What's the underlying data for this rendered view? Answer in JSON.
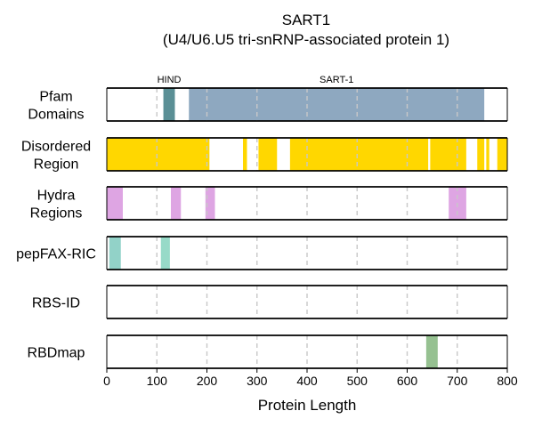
{
  "chart_data": {
    "type": "bar",
    "title_line1": "SART1",
    "title_line2": "(U4/U6.U5 tri-snRNP-associated protein 1)",
    "xlabel": "Protein Length",
    "xlim": [
      0,
      800
    ],
    "xticks": [
      0,
      100,
      200,
      300,
      400,
      500,
      600,
      700,
      800
    ],
    "grid_x": [
      100,
      200,
      300,
      400,
      500,
      600,
      700
    ],
    "tracks": [
      {
        "name": "Pfam\nDomains",
        "segments": [
          {
            "start": 113,
            "end": 136,
            "color": "#5a8f95",
            "label": "HIND"
          },
          {
            "start": 164,
            "end": 754,
            "color": "#8ea8c0",
            "label": "SART-1"
          }
        ]
      },
      {
        "name": "Disordered\nRegion",
        "segments": [
          {
            "start": 0,
            "end": 205,
            "color": "#ffd700"
          },
          {
            "start": 272,
            "end": 280,
            "color": "#ffd700"
          },
          {
            "start": 303,
            "end": 340,
            "color": "#ffd700"
          },
          {
            "start": 366,
            "end": 642,
            "color": "#ffd700"
          },
          {
            "start": 646,
            "end": 718,
            "color": "#ffd700"
          },
          {
            "start": 740,
            "end": 754,
            "color": "#ffd700"
          },
          {
            "start": 758,
            "end": 764,
            "color": "#ffd700"
          },
          {
            "start": 780,
            "end": 800,
            "color": "#ffd700"
          }
        ]
      },
      {
        "name": "Hydra\nRegions",
        "segments": [
          {
            "start": 0,
            "end": 32,
            "color": "#dea5e3"
          },
          {
            "start": 128,
            "end": 148,
            "color": "#dea5e3"
          },
          {
            "start": 197,
            "end": 216,
            "color": "#dea5e3"
          },
          {
            "start": 683,
            "end": 718,
            "color": "#dea5e3"
          }
        ]
      },
      {
        "name": "pepFAX-RIC",
        "segments": [
          {
            "start": 5,
            "end": 28,
            "color": "#92d2c8"
          },
          {
            "start": 108,
            "end": 126,
            "color": "#97dac8"
          }
        ]
      },
      {
        "name": "RBS-ID",
        "segments": []
      },
      {
        "name": "RBDmap",
        "segments": [
          {
            "start": 638,
            "end": 661,
            "color": "#96c191"
          }
        ]
      }
    ]
  }
}
